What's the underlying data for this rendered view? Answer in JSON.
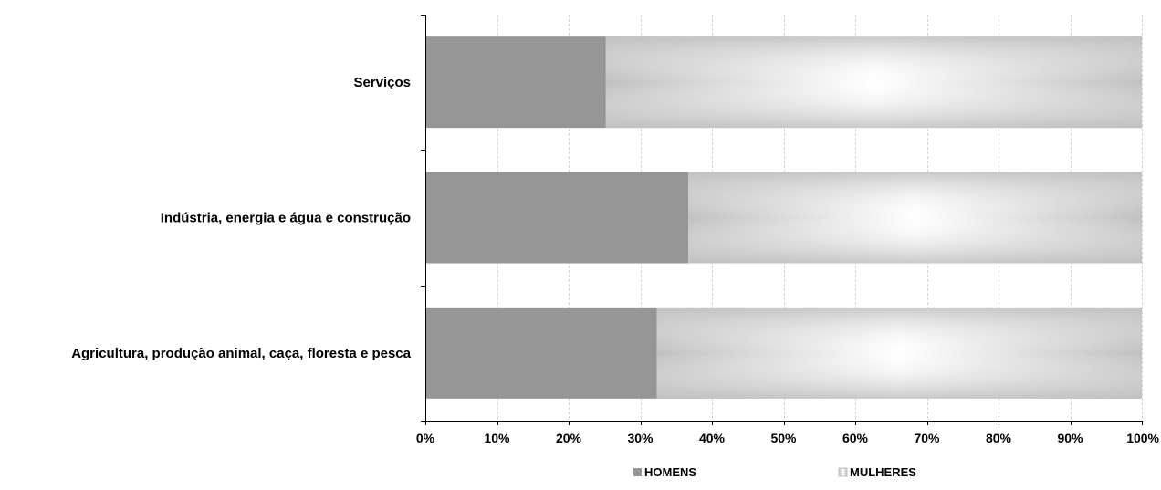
{
  "chart_data": {
    "type": "bar",
    "orientation": "horizontal",
    "stacked": "percent",
    "categories": [
      "Serviços",
      "Indústria, energia e água e construção",
      "Agricultura, produção animal, caça, floresta e pesca"
    ],
    "series": [
      {
        "name": "HOMENS",
        "values": [
          25.2,
          36.7,
          32.3
        ]
      },
      {
        "name": "MULHERES",
        "values": [
          74.8,
          63.3,
          67.7
        ]
      }
    ],
    "xlim": [
      0,
      100
    ],
    "xticks": [
      "0%",
      "10%",
      "20%",
      "30%",
      "40%",
      "50%",
      "60%",
      "70%",
      "80%",
      "90%",
      "100%"
    ],
    "grid": "vertical",
    "legend": "bottom",
    "colors": {
      "homens": "#969696",
      "mulheres_edge": "#c0c0c0",
      "mulheres_center": "#ffffff"
    }
  }
}
